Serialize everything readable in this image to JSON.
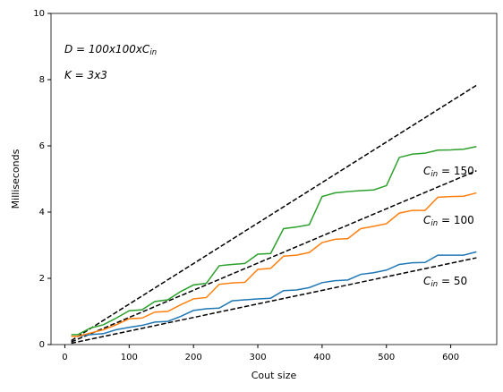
{
  "chart_data": {
    "type": "line",
    "xlabel": "Cout size",
    "ylabel": "Milliseconds",
    "x": [
      10,
      20,
      40,
      60,
      80,
      100,
      120,
      140,
      160,
      180,
      200,
      220,
      240,
      260,
      280,
      300,
      320,
      340,
      360,
      380,
      400,
      420,
      440,
      460,
      480,
      500,
      520,
      540,
      560,
      580,
      600,
      620,
      640
    ],
    "series": [
      {
        "color": "#1f77b4",
        "values": [
          0.25,
          0.25,
          0.3,
          0.33,
          0.45,
          0.52,
          0.58,
          0.68,
          0.7,
          0.85,
          1.03,
          1.08,
          1.1,
          1.32,
          1.35,
          1.38,
          1.4,
          1.63,
          1.65,
          1.72,
          1.87,
          1.93,
          1.95,
          2.12,
          2.17,
          2.25,
          2.42,
          2.47,
          2.48,
          2.7,
          2.7,
          2.7,
          2.8
        ]
      },
      {
        "color": "#ff7f0e",
        "values": [
          0.25,
          0.25,
          0.35,
          0.45,
          0.6,
          0.78,
          0.8,
          0.98,
          1.0,
          1.2,
          1.38,
          1.42,
          1.82,
          1.86,
          1.88,
          2.27,
          2.3,
          2.67,
          2.7,
          2.78,
          3.08,
          3.18,
          3.2,
          3.5,
          3.57,
          3.65,
          3.97,
          4.05,
          4.05,
          4.45,
          4.47,
          4.48,
          4.58
        ]
      },
      {
        "color": "#2ca02c",
        "values": [
          0.3,
          0.3,
          0.5,
          0.6,
          0.8,
          1.02,
          1.05,
          1.3,
          1.35,
          1.6,
          1.8,
          1.85,
          2.38,
          2.42,
          2.45,
          2.73,
          2.75,
          3.5,
          3.55,
          3.62,
          4.47,
          4.58,
          4.62,
          4.65,
          4.67,
          4.8,
          5.65,
          5.75,
          5.78,
          5.87,
          5.88,
          5.9,
          5.98
        ]
      }
    ],
    "reference_lines": [
      {
        "color": "#000000",
        "dashed": true,
        "x": [
          10,
          640
        ],
        "values": [
          0.04,
          2.62
        ]
      },
      {
        "color": "#000000",
        "dashed": true,
        "x": [
          10,
          640
        ],
        "values": [
          0.08,
          5.25
        ]
      },
      {
        "color": "#000000",
        "dashed": true,
        "x": [
          10,
          640
        ],
        "values": [
          0.12,
          7.83
        ]
      }
    ],
    "annotations": [
      {
        "base": "D = 100x100xC",
        "sub": "in"
      },
      {
        "base": "K = 3x3"
      },
      {
        "base": "C",
        "sub": "in",
        "rest": " = 150"
      },
      {
        "base": "C",
        "sub": "in",
        "rest": " = 100"
      },
      {
        "base": "C",
        "sub": "in",
        "rest": " = 50"
      }
    ],
    "xlim": [
      -21.5,
      671.5
    ],
    "xticks": [
      0,
      100,
      200,
      300,
      400,
      500,
      600
    ],
    "ylim": [
      0,
      10
    ],
    "yticks": [
      0,
      2,
      4,
      6,
      8,
      10
    ],
    "grid": false
  }
}
